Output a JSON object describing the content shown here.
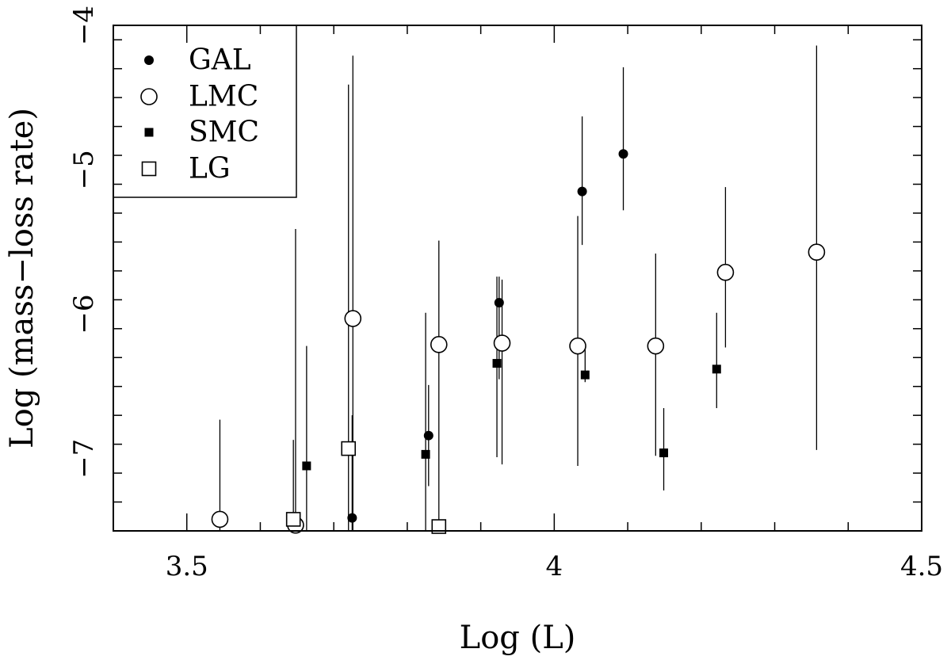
{
  "chart_data": {
    "type": "scatter",
    "title": "",
    "xlabel": "Log (L)",
    "ylabel": "Log (mass−loss rate)",
    "xlim": [
      3.4,
      4.5
    ],
    "ylim": [
      -7.5,
      -4.0
    ],
    "xticks": [
      {
        "value": 3.5,
        "label": "3.5"
      },
      {
        "value": 4.0,
        "label": "4"
      },
      {
        "value": 4.5,
        "label": "4.5"
      }
    ],
    "yticks": [
      {
        "value": -4,
        "label": "−4"
      },
      {
        "value": -5,
        "label": "−5"
      },
      {
        "value": -6,
        "label": "−6"
      },
      {
        "value": -7,
        "label": "−7"
      }
    ],
    "grid": false,
    "legend_position": "top-left",
    "series": [
      {
        "name": "GAL",
        "marker": "filled-circle",
        "points": [
          {
            "x": 4.094,
            "y": -4.89,
            "ylo": -5.28,
            "yhi": -4.29
          },
          {
            "x": 4.038,
            "y": -5.15,
            "ylo": -5.52,
            "yhi": -4.63
          },
          {
            "x": 3.925,
            "y": -5.92,
            "ylo": -6.45,
            "yhi": -5.74
          },
          {
            "x": 3.829,
            "y": -6.84,
            "ylo": -7.19,
            "yhi": -6.49
          },
          {
            "x": 3.725,
            "y": -7.41,
            "ylo": -7.62,
            "yhi": -6.7
          }
        ]
      },
      {
        "name": "LMC",
        "marker": "open-circle",
        "points": [
          {
            "x": 4.357,
            "y": -5.57,
            "ylo": -6.94,
            "yhi": -4.14
          },
          {
            "x": 4.233,
            "y": -5.71,
            "ylo": -6.23,
            "yhi": -5.12
          },
          {
            "x": 4.138,
            "y": -6.22,
            "ylo": -6.98,
            "yhi": -5.58
          },
          {
            "x": 4.032,
            "y": -6.22,
            "ylo": -7.05,
            "yhi": -5.32
          },
          {
            "x": 3.929,
            "y": -6.2,
            "ylo": -7.04,
            "yhi": -5.76
          },
          {
            "x": 3.843,
            "y": -6.21,
            "ylo": -7.43,
            "yhi": -5.49
          },
          {
            "x": 3.726,
            "y": -6.03,
            "ylo": -7.62,
            "yhi": -4.21
          },
          {
            "x": 3.648,
            "y": -7.46,
            "ylo": -7.62,
            "yhi": -5.41
          },
          {
            "x": 3.545,
            "y": -7.42,
            "ylo": -7.62,
            "yhi": -6.73
          }
        ]
      },
      {
        "name": "SMC",
        "marker": "filled-square",
        "points": [
          {
            "x": 4.221,
            "y": -6.38,
            "ylo": -6.65,
            "yhi": -5.99
          },
          {
            "x": 4.149,
            "y": -6.96,
            "ylo": -7.22,
            "yhi": -6.65
          },
          {
            "x": 4.042,
            "y": -6.42,
            "ylo": -6.47,
            "yhi": -6.22
          },
          {
            "x": 3.922,
            "y": -6.34,
            "ylo": -6.99,
            "yhi": -5.74
          },
          {
            "x": 3.825,
            "y": -6.97,
            "ylo": -7.6,
            "yhi": -5.99
          },
          {
            "x": 3.663,
            "y": -7.05,
            "ylo": -7.62,
            "yhi": -6.22
          }
        ]
      },
      {
        "name": "LG",
        "marker": "open-square",
        "points": [
          {
            "x": 3.72,
            "y": -6.93,
            "ylo": -7.62,
            "yhi": -4.41
          },
          {
            "x": 3.645,
            "y": -7.42,
            "ylo": -7.62,
            "yhi": -6.87
          },
          {
            "x": 3.843,
            "y": -7.47,
            "ylo": -7.62,
            "yhi": -7.47
          }
        ]
      }
    ]
  }
}
